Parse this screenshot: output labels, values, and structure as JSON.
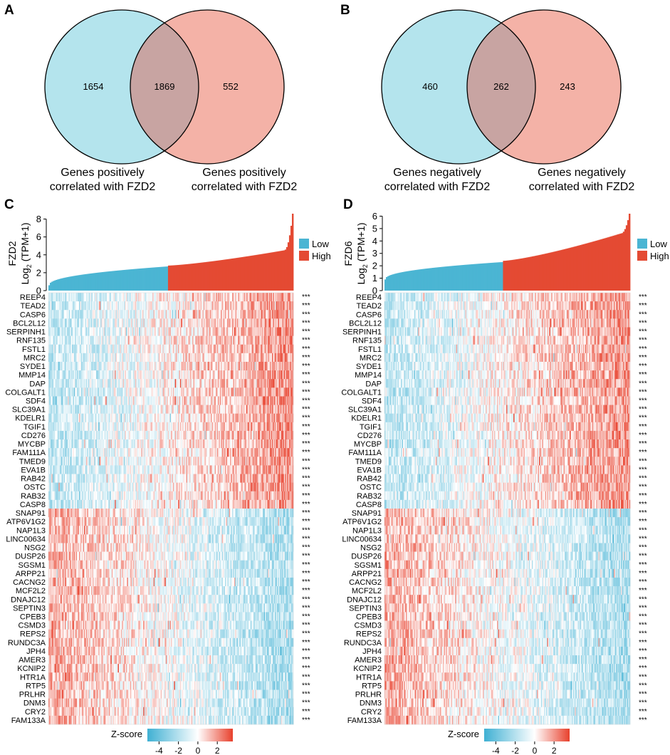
{
  "panels": {
    "A": {
      "letter": "A"
    },
    "B": {
      "letter": "B"
    },
    "C": {
      "letter": "C"
    },
    "D": {
      "letter": "D"
    }
  },
  "colors": {
    "low": "#4bb5d3",
    "high": "#e44a33",
    "venn_left": "#b4e4ed",
    "venn_right": "#f4b2a7",
    "venn_overlap": "#c8a4a2"
  },
  "stars": "***",
  "chart_data": [
    {
      "type": "venn",
      "panel": "A",
      "left_count": "1654",
      "overlap_count": "1869",
      "right_count": "552",
      "left_label": [
        "Genes positively",
        "correlated with FZD2"
      ],
      "right_label": [
        "Genes positively",
        "correlated with FZD2"
      ]
    },
    {
      "type": "venn",
      "panel": "B",
      "left_count": "460",
      "overlap_count": "262",
      "right_count": "243",
      "left_label": [
        "Genes negatively",
        "correlated with FZD2"
      ],
      "right_label": [
        "Genes negatively",
        "correlated with FZD2"
      ]
    },
    {
      "type": "heatmap",
      "panel": "C",
      "gene": "FZD2",
      "ylabel_gene": "FZD2",
      "ylabel_unit": "(TPM+1)",
      "ylabel_log": "Log",
      "ylabel_sub": "2",
      "yticks": [
        0,
        2,
        4,
        6,
        8
      ],
      "ylim": [
        0,
        8.6
      ],
      "expression_profile": {
        "min": 0.6,
        "low_end": 2.7,
        "high_start": 2.8,
        "pre_max": 4.5,
        "max": 8.6,
        "split_fraction": 0.49
      },
      "legend": [
        {
          "label": "Low"
        },
        {
          "label": "High"
        }
      ],
      "genes_positive": [
        "REEP4",
        "TEAD2",
        "CASP6",
        "BCL2L12",
        "SERPINH1",
        "RNF135",
        "FSTL1",
        "MRC2",
        "SYDE1",
        "MMP14",
        "DAP",
        "COLGALT1",
        "SDF4",
        "SLC39A1",
        "KDELR1",
        "TGIF1",
        "CD276",
        "MYCBP",
        "FAM111A",
        "TMED9",
        "EVA1B",
        "RAB42",
        "OSTC",
        "RAB32",
        "CASP8"
      ],
      "genes_negative": [
        "SNAP91",
        "ATP6V1G2",
        "NAP1L3",
        "LINC00634",
        "NSG2",
        "DUSP26",
        "SGSM1",
        "ARPP21",
        "CACNG2",
        "MCF2L2",
        "DNAJC12",
        "SEPTIN3",
        "CPEB3",
        "CSMD3",
        "REPS2",
        "RUNDC3A",
        "JPH4",
        "AMER3",
        "KCNIP2",
        "HTR1A",
        "RTP5",
        "PRLHR",
        "DNM3",
        "CRY2",
        "FAM133A"
      ],
      "zscore": {
        "label": "Z-score",
        "ticks": [
          "-4",
          "-2",
          "0",
          "2"
        ],
        "tick_values": [
          -4,
          -2,
          0,
          2
        ],
        "range": [
          -5.2,
          3.6
        ]
      }
    },
    {
      "type": "heatmap",
      "panel": "D",
      "gene": "FZD6",
      "ylabel_gene": "FZD6",
      "ylabel_unit": "(TPM+1)",
      "ylabel_log": "Log",
      "ylabel_sub": "2",
      "yticks": [
        0,
        1,
        2,
        3,
        4,
        5,
        6
      ],
      "ylim": [
        0,
        6.2
      ],
      "expression_profile": {
        "min": 0.9,
        "low_end": 2.3,
        "high_start": 2.4,
        "pre_max": 4.6,
        "max": 6.2,
        "split_fraction": 0.48
      },
      "legend": [
        {
          "label": "Low"
        },
        {
          "label": "High"
        }
      ],
      "genes_positive": [
        "REEP4",
        "TEAD2",
        "CASP6",
        "BCL2L12",
        "SERPINH1",
        "RNF135",
        "FSTL1",
        "MRC2",
        "SYDE1",
        "MMP14",
        "DAP",
        "COLGALT1",
        "SDF4",
        "SLC39A1",
        "KDELR1",
        "TGIF1",
        "CD276",
        "MYCBP",
        "FAM111A",
        "TMED9",
        "EVA1B",
        "RAB42",
        "OSTC",
        "RAB32",
        "CASP8"
      ],
      "genes_negative": [
        "SNAP91",
        "ATP6V1G2",
        "NAP1L3",
        "LINC00634",
        "NSG2",
        "DUSP26",
        "SGSM1",
        "ARPP21",
        "CACNG2",
        "MCF2L2",
        "DNAJC12",
        "SEPTIN3",
        "CPEB3",
        "CSMD3",
        "REPS2",
        "RUNDC3A",
        "JPH4",
        "AMER3",
        "KCNIP2",
        "HTR1A",
        "RTP5",
        "PRLHR",
        "DNM3",
        "CRY2",
        "FAM133A"
      ],
      "zscore": {
        "label": "Z-score",
        "ticks": [
          "-4",
          "-2",
          "0",
          "2"
        ],
        "tick_values": [
          -4,
          -2,
          0,
          2
        ],
        "range": [
          -5.2,
          3.6
        ]
      }
    }
  ]
}
